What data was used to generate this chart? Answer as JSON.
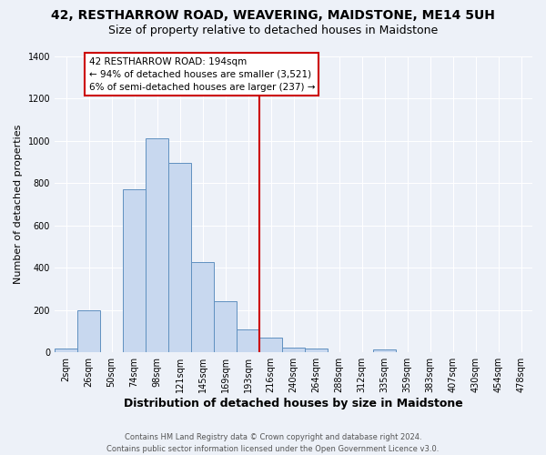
{
  "title1": "42, RESTHARROW ROAD, WEAVERING, MAIDSTONE, ME14 5UH",
  "title2": "Size of property relative to detached houses in Maidstone",
  "xlabel": "Distribution of detached houses by size in Maidstone",
  "ylabel": "Number of detached properties",
  "bar_labels": [
    "2sqm",
    "26sqm",
    "50sqm",
    "74sqm",
    "98sqm",
    "121sqm",
    "145sqm",
    "169sqm",
    "193sqm",
    "216sqm",
    "240sqm",
    "264sqm",
    "288sqm",
    "312sqm",
    "335sqm",
    "359sqm",
    "383sqm",
    "407sqm",
    "430sqm",
    "454sqm",
    "478sqm"
  ],
  "bar_heights": [
    20,
    200,
    0,
    770,
    1010,
    895,
    425,
    240,
    110,
    70,
    25,
    20,
    0,
    0,
    15,
    0,
    0,
    0,
    0,
    0,
    0
  ],
  "bar_color": "#c8d8ef",
  "bar_edge_color": "#6090c0",
  "background_color": "#edf1f8",
  "grid_color": "#ffffff",
  "vline_color": "#cc0000",
  "annotation_title": "42 RESTHARROW ROAD: 194sqm",
  "annotation_line1": "← 94% of detached houses are smaller (3,521)",
  "annotation_line2": "6% of semi-detached houses are larger (237) →",
  "annotation_box_color": "#ffffff",
  "annotation_box_edge": "#cc0000",
  "ylim": [
    0,
    1400
  ],
  "yticks": [
    0,
    200,
    400,
    600,
    800,
    1000,
    1200,
    1400
  ],
  "footer1": "Contains HM Land Registry data © Crown copyright and database right 2024.",
  "footer2": "Contains public sector information licensed under the Open Government Licence v3.0.",
  "title1_fontsize": 10,
  "title2_fontsize": 9,
  "xlabel_fontsize": 9,
  "ylabel_fontsize": 8,
  "tick_fontsize": 7,
  "footer_fontsize": 6,
  "annot_fontsize": 7.5
}
